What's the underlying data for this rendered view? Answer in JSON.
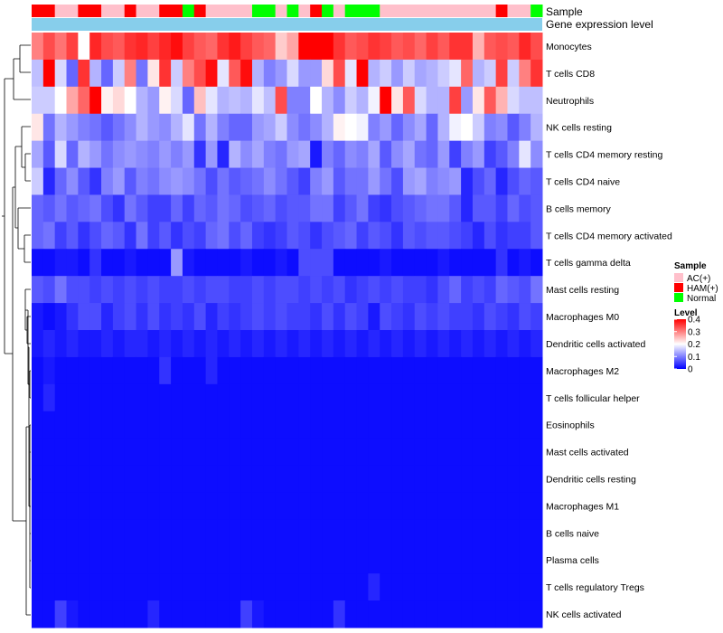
{
  "chart_data": {
    "type": "heatmap",
    "annotation_labels": {
      "sample": "Sample",
      "gene_level": "Gene expression level"
    },
    "sample_groups": [
      "H",
      "H",
      "A",
      "A",
      "H",
      "H",
      "A",
      "A",
      "H",
      "A",
      "A",
      "H",
      "H",
      "N",
      "H",
      "A",
      "A",
      "A",
      "A",
      "N",
      "N",
      "A",
      "N",
      "A",
      "H",
      "N",
      "A",
      "N",
      "N",
      "N",
      "A",
      "A",
      "A",
      "A",
      "A",
      "A",
      "A",
      "A",
      "A",
      "A",
      "H",
      "A",
      "A",
      "N"
    ],
    "row_labels": [
      "Monocytes",
      "T cells CD8",
      "Neutrophils",
      "NK cells resting",
      "T cells CD4 memory resting",
      "T cells CD4 naive",
      "B cells memory",
      "T cells CD4 memory activated",
      "T cells gamma delta",
      "Mast cells resting",
      "Macrophages M0",
      "Dendritic cells activated",
      "Macrophages M2",
      "T cells follicular helper",
      "Eosinophils",
      "Mast cells activated",
      "Dendritic cells resting",
      "Macrophages M1",
      "B cells naive",
      "Plasma cells",
      "T cells regulatory  Tregs",
      "NK cells activated"
    ],
    "values": [
      [
        0.3,
        0.34,
        0.31,
        0.35,
        0.2,
        0.37,
        0.34,
        0.33,
        0.36,
        0.37,
        0.35,
        0.37,
        0.39,
        0.35,
        0.33,
        0.32,
        0.36,
        0.38,
        0.35,
        0.33,
        0.32,
        0.24,
        0.27,
        0.4,
        0.4,
        0.4,
        0.36,
        0.33,
        0.34,
        0.36,
        0.35,
        0.33,
        0.34,
        0.32,
        0.35,
        0.33,
        0.36,
        0.36,
        0.26,
        0.33,
        0.34,
        0.33,
        0.37,
        0.34
      ],
      [
        0.15,
        0.4,
        0.17,
        0.08,
        0.36,
        0.14,
        0.08,
        0.16,
        0.3,
        0.09,
        0.22,
        0.36,
        0.16,
        0.3,
        0.34,
        0.39,
        0.18,
        0.33,
        0.39,
        0.14,
        0.1,
        0.12,
        0.17,
        0.12,
        0.12,
        0.23,
        0.34,
        0.18,
        0.4,
        0.14,
        0.16,
        0.12,
        0.16,
        0.13,
        0.14,
        0.16,
        0.18,
        0.32,
        0.14,
        0.16,
        0.35,
        0.16,
        0.3,
        0.36
      ],
      [
        0.16,
        0.16,
        0.2,
        0.27,
        0.32,
        0.4,
        0.21,
        0.23,
        0.2,
        0.14,
        0.12,
        0.21,
        0.17,
        0.08,
        0.25,
        0.18,
        0.14,
        0.15,
        0.14,
        0.18,
        0.15,
        0.34,
        0.1,
        0.1,
        0.2,
        0.14,
        0.11,
        0.16,
        0.14,
        0.19,
        0.4,
        0.22,
        0.33,
        0.17,
        0.14,
        0.14,
        0.35,
        0.12,
        0.22,
        0.33,
        0.26,
        0.17,
        0.15,
        0.15
      ],
      [
        0.22,
        0.09,
        0.14,
        0.12,
        0.1,
        0.09,
        0.07,
        0.09,
        0.11,
        0.14,
        0.12,
        0.11,
        0.14,
        0.18,
        0.09,
        0.14,
        0.1,
        0.08,
        0.08,
        0.12,
        0.13,
        0.16,
        0.11,
        0.09,
        0.11,
        0.14,
        0.21,
        0.2,
        0.19,
        0.1,
        0.12,
        0.08,
        0.11,
        0.13,
        0.08,
        0.14,
        0.19,
        0.2,
        0.16,
        0.1,
        0.11,
        0.07,
        0.1,
        0.14
      ],
      [
        0.13,
        0.07,
        0.17,
        0.08,
        0.14,
        0.12,
        0.09,
        0.11,
        0.12,
        0.11,
        0.1,
        0.12,
        0.1,
        0.12,
        0.04,
        0.12,
        0.03,
        0.14,
        0.11,
        0.13,
        0.1,
        0.09,
        0.12,
        0.13,
        0.02,
        0.1,
        0.08,
        0.11,
        0.1,
        0.13,
        0.07,
        0.11,
        0.13,
        0.09,
        0.08,
        0.12,
        0.05,
        0.1,
        0.12,
        0.05,
        0.07,
        0.1,
        0.18,
        0.11
      ],
      [
        0.16,
        0.03,
        0.08,
        0.11,
        0.07,
        0.04,
        0.1,
        0.12,
        0.07,
        0.1,
        0.09,
        0.11,
        0.12,
        0.11,
        0.09,
        0.06,
        0.09,
        0.07,
        0.08,
        0.09,
        0.11,
        0.09,
        0.07,
        0.05,
        0.1,
        0.12,
        0.07,
        0.09,
        0.09,
        0.12,
        0.09,
        0.06,
        0.12,
        0.13,
        0.1,
        0.11,
        0.12,
        0.03,
        0.06,
        0.08,
        0.03,
        0.06,
        0.08,
        0.07
      ],
      [
        0.08,
        0.07,
        0.09,
        0.07,
        0.08,
        0.09,
        0.06,
        0.04,
        0.09,
        0.07,
        0.05,
        0.05,
        0.08,
        0.05,
        0.08,
        0.07,
        0.09,
        0.08,
        0.06,
        0.07,
        0.08,
        0.06,
        0.07,
        0.07,
        0.09,
        0.09,
        0.05,
        0.07,
        0.09,
        0.05,
        0.04,
        0.06,
        0.07,
        0.08,
        0.09,
        0.09,
        0.07,
        0.03,
        0.07,
        0.07,
        0.05,
        0.08,
        0.06,
        0.07
      ],
      [
        0.08,
        0.09,
        0.05,
        0.07,
        0.04,
        0.06,
        0.08,
        0.07,
        0.04,
        0.09,
        0.05,
        0.07,
        0.04,
        0.06,
        0.05,
        0.08,
        0.09,
        0.06,
        0.08,
        0.05,
        0.04,
        0.05,
        0.07,
        0.06,
        0.04,
        0.06,
        0.07,
        0.08,
        0.05,
        0.07,
        0.06,
        0.04,
        0.07,
        0.06,
        0.07,
        0.07,
        0.06,
        0.05,
        0.03,
        0.06,
        0.04,
        0.05,
        0.05,
        0.07
      ],
      [
        0.01,
        0.01,
        0.02,
        0.02,
        0.01,
        0.04,
        0.01,
        0.01,
        0.02,
        0.01,
        0.01,
        0.01,
        0.12,
        0.02,
        0.01,
        0.01,
        0.01,
        0.01,
        0.02,
        0.01,
        0.01,
        0.02,
        0.01,
        0.06,
        0.06,
        0.06,
        0.01,
        0.01,
        0.01,
        0.01,
        0.02,
        0.01,
        0.01,
        0.01,
        0.01,
        0.02,
        0.01,
        0.01,
        0.01,
        0.01,
        0.04,
        0.01,
        0.02,
        0.01
      ],
      [
        0.07,
        0.06,
        0.09,
        0.06,
        0.06,
        0.05,
        0.06,
        0.05,
        0.06,
        0.05,
        0.06,
        0.05,
        0.05,
        0.06,
        0.05,
        0.06,
        0.06,
        0.05,
        0.05,
        0.06,
        0.05,
        0.06,
        0.06,
        0.05,
        0.06,
        0.05,
        0.06,
        0.04,
        0.05,
        0.06,
        0.05,
        0.06,
        0.05,
        0.05,
        0.04,
        0.06,
        0.08,
        0.05,
        0.06,
        0.05,
        0.08,
        0.07,
        0.06,
        0.09
      ],
      [
        0.02,
        0.01,
        0.02,
        0.04,
        0.06,
        0.06,
        0.03,
        0.05,
        0.06,
        0.04,
        0.06,
        0.04,
        0.05,
        0.04,
        0.06,
        0.03,
        0.05,
        0.04,
        0.05,
        0.06,
        0.05,
        0.06,
        0.05,
        0.05,
        0.04,
        0.06,
        0.04,
        0.06,
        0.05,
        0.02,
        0.06,
        0.05,
        0.04,
        0.06,
        0.05,
        0.06,
        0.05,
        0.05,
        0.04,
        0.06,
        0.05,
        0.04,
        0.06,
        0.05
      ],
      [
        0.02,
        0.03,
        0.02,
        0.03,
        0.02,
        0.02,
        0.03,
        0.02,
        0.03,
        0.03,
        0.02,
        0.03,
        0.02,
        0.03,
        0.02,
        0.03,
        0.02,
        0.03,
        0.02,
        0.03,
        0.02,
        0.03,
        0.02,
        0.03,
        0.02,
        0.03,
        0.02,
        0.03,
        0.02,
        0.03,
        0.02,
        0.03,
        0.02,
        0.03,
        0.02,
        0.03,
        0.02,
        0.03,
        0.02,
        0.03,
        0.02,
        0.03,
        0.02,
        0.03
      ],
      [
        0.01,
        0.02,
        0.01,
        0.01,
        0.01,
        0.01,
        0.01,
        0.01,
        0.01,
        0.01,
        0.01,
        0.04,
        0.01,
        0.01,
        0.01,
        0.03,
        0.01,
        0.01,
        0.01,
        0.01,
        0.01,
        0.01,
        0.01,
        0.01,
        0.01,
        0.01,
        0.01,
        0.01,
        0.01,
        0.01,
        0.01,
        0.01,
        0.01,
        0.01,
        0.01,
        0.01,
        0.01,
        0.01,
        0.01,
        0.01,
        0.01,
        0.01,
        0.01,
        0.01
      ],
      [
        0.01,
        0.03,
        0.01,
        0.01,
        0.01,
        0.01,
        0.01,
        0.01,
        0.01,
        0.01,
        0.01,
        0.01,
        0.01,
        0.01,
        0.01,
        0.01,
        0.01,
        0.01,
        0.01,
        0.01,
        0.01,
        0.01,
        0.01,
        0.01,
        0.01,
        0.01,
        0.01,
        0.01,
        0.01,
        0.01,
        0.01,
        0.01,
        0.01,
        0.01,
        0.01,
        0.01,
        0.01,
        0.01,
        0.01,
        0.01,
        0.01,
        0.01,
        0.01,
        0.01
      ],
      [
        0.01,
        0.01,
        0.01,
        0.01,
        0.01,
        0.01,
        0.01,
        0.01,
        0.01,
        0.01,
        0.01,
        0.01,
        0.01,
        0.01,
        0.01,
        0.01,
        0.01,
        0.01,
        0.01,
        0.01,
        0.01,
        0.01,
        0.01,
        0.01,
        0.01,
        0.01,
        0.01,
        0.01,
        0.01,
        0.01,
        0.01,
        0.01,
        0.01,
        0.01,
        0.01,
        0.01,
        0.01,
        0.01,
        0.01,
        0.01,
        0.01,
        0.01,
        0.01,
        0.01
      ],
      [
        0.01,
        0.01,
        0.01,
        0.01,
        0.01,
        0.01,
        0.01,
        0.01,
        0.01,
        0.01,
        0.01,
        0.01,
        0.01,
        0.01,
        0.01,
        0.01,
        0.01,
        0.01,
        0.01,
        0.01,
        0.01,
        0.01,
        0.01,
        0.01,
        0.01,
        0.01,
        0.01,
        0.01,
        0.01,
        0.01,
        0.01,
        0.01,
        0.01,
        0.01,
        0.01,
        0.01,
        0.01,
        0.01,
        0.01,
        0.01,
        0.01,
        0.01,
        0.01,
        0.01
      ],
      [
        0.01,
        0.01,
        0.01,
        0.01,
        0.01,
        0.01,
        0.01,
        0.01,
        0.01,
        0.01,
        0.01,
        0.01,
        0.01,
        0.01,
        0.01,
        0.01,
        0.01,
        0.01,
        0.01,
        0.01,
        0.01,
        0.01,
        0.01,
        0.01,
        0.01,
        0.01,
        0.01,
        0.01,
        0.01,
        0.01,
        0.01,
        0.01,
        0.01,
        0.01,
        0.01,
        0.01,
        0.01,
        0.01,
        0.01,
        0.01,
        0.01,
        0.01,
        0.01,
        0.01
      ],
      [
        0.01,
        0.01,
        0.01,
        0.01,
        0.01,
        0.01,
        0.01,
        0.01,
        0.01,
        0.01,
        0.01,
        0.01,
        0.01,
        0.01,
        0.01,
        0.01,
        0.01,
        0.01,
        0.01,
        0.01,
        0.01,
        0.01,
        0.01,
        0.01,
        0.01,
        0.01,
        0.01,
        0.01,
        0.01,
        0.01,
        0.01,
        0.01,
        0.01,
        0.01,
        0.01,
        0.01,
        0.01,
        0.01,
        0.01,
        0.01,
        0.01,
        0.01,
        0.01,
        0.01
      ],
      [
        0.01,
        0.01,
        0.01,
        0.01,
        0.01,
        0.01,
        0.01,
        0.01,
        0.01,
        0.01,
        0.01,
        0.01,
        0.01,
        0.01,
        0.01,
        0.01,
        0.01,
        0.01,
        0.01,
        0.01,
        0.01,
        0.01,
        0.01,
        0.01,
        0.01,
        0.01,
        0.01,
        0.01,
        0.01,
        0.01,
        0.01,
        0.01,
        0.01,
        0.01,
        0.01,
        0.01,
        0.01,
        0.01,
        0.01,
        0.01,
        0.01,
        0.01,
        0.01,
        0.01
      ],
      [
        0.01,
        0.01,
        0.01,
        0.01,
        0.01,
        0.01,
        0.01,
        0.01,
        0.01,
        0.01,
        0.01,
        0.01,
        0.01,
        0.01,
        0.01,
        0.01,
        0.01,
        0.01,
        0.01,
        0.01,
        0.01,
        0.01,
        0.01,
        0.01,
        0.01,
        0.01,
        0.01,
        0.01,
        0.01,
        0.01,
        0.01,
        0.01,
        0.01,
        0.01,
        0.01,
        0.01,
        0.01,
        0.01,
        0.01,
        0.01,
        0.01,
        0.01,
        0.01,
        0.01
      ],
      [
        0.01,
        0.01,
        0.01,
        0.01,
        0.01,
        0.01,
        0.01,
        0.01,
        0.01,
        0.01,
        0.01,
        0.01,
        0.01,
        0.01,
        0.01,
        0.01,
        0.01,
        0.01,
        0.01,
        0.01,
        0.01,
        0.01,
        0.01,
        0.01,
        0.01,
        0.01,
        0.01,
        0.01,
        0.01,
        0.03,
        0.01,
        0.01,
        0.01,
        0.01,
        0.01,
        0.01,
        0.01,
        0.01,
        0.01,
        0.01,
        0.01,
        0.01,
        0.01,
        0.01
      ],
      [
        0.01,
        0.01,
        0.05,
        0.02,
        0.01,
        0.01,
        0.01,
        0.01,
        0.01,
        0.01,
        0.03,
        0.01,
        0.01,
        0.01,
        0.01,
        0.01,
        0.01,
        0.01,
        0.05,
        0.02,
        0.01,
        0.01,
        0.01,
        0.01,
        0.01,
        0.01,
        0.04,
        0.01,
        0.01,
        0.01,
        0.01,
        0.01,
        0.01,
        0.01,
        0.01,
        0.01,
        0.01,
        0.01,
        0.01,
        0.01,
        0.01,
        0.01,
        0.01,
        0.01
      ]
    ],
    "color_scale": {
      "min": 0,
      "max": 0.4,
      "stops": [
        {
          "value": 0,
          "color": "#0000FF"
        },
        {
          "value": 0.2,
          "color": "#FFFFFF"
        },
        {
          "value": 0.4,
          "color": "#FF0000"
        }
      ]
    },
    "legend": {
      "sample_title": "Sample",
      "sample_items": [
        {
          "key": "A",
          "label": "AC(+)",
          "color": "#FFC0CB"
        },
        {
          "key": "H",
          "label": "HAM(+)",
          "color": "#FF0000"
        },
        {
          "key": "N",
          "label": "Normal",
          "color": "#00FF00"
        }
      ],
      "level_title": "Level",
      "level_ticks": [
        "0.4",
        "0.3",
        "0.2",
        "0.1",
        "0"
      ],
      "level_tick_values": [
        0.4,
        0.3,
        0.2,
        0.1,
        0
      ]
    },
    "gene_level_color": "#87CEEB",
    "dendrogram": "row clustering tree (left)"
  }
}
